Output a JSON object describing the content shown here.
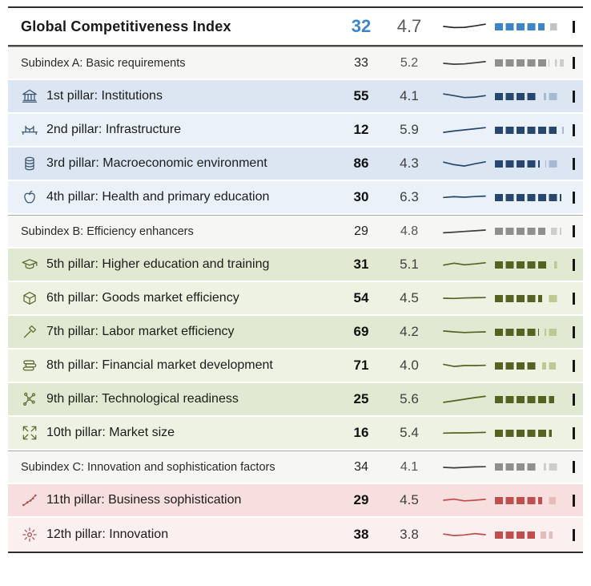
{
  "header": {
    "title": "Global Competitiveness Index",
    "rank": "32",
    "score": "4.7",
    "rank_color": "#3d85c6",
    "spark_color": "#2b2b2b",
    "spark": [
      0.5,
      0.6,
      0.58,
      0.45,
      0.3
    ],
    "bar": {
      "score_pct": 67,
      "ref_pct": 88,
      "color": "#3d85c6",
      "ref_color": "#c2c2c2"
    }
  },
  "palette": {
    "gray": {
      "bg_a": "#f6f6f5",
      "bg_b": "#f6f6f5",
      "bar": "#8f8f8f",
      "ref": "#cdcdcd",
      "spark": "#3d3d3d",
      "icon": "#4a4a4a"
    },
    "blue": {
      "bg_a": "#dbe6f2",
      "bg_b": "#eaf1f8",
      "bar": "#27476e",
      "ref": "#a6bad2",
      "spark": "#27476e",
      "icon": "#3d5673"
    },
    "green": {
      "bg_a": "#e1e9d2",
      "bg_b": "#edf2e2",
      "bar": "#556322",
      "ref": "#bcc993",
      "spark": "#556322",
      "icon": "#5c6b31"
    },
    "red": {
      "bg_a": "#f7dfdf",
      "bg_b": "#fcefef",
      "bar": "#bf4f4f",
      "ref": "#e5bcbc",
      "spark": "#bf4f4f",
      "icon": "#a8504f"
    }
  },
  "rows": [
    {
      "type": "subindex",
      "group": "gray",
      "shade": "a",
      "label": "Subindex A: Basic requirements",
      "rank": "33",
      "score": "5.2",
      "spark": [
        0.5,
        0.58,
        0.55,
        0.45,
        0.35
      ],
      "bar": {
        "score_pct": 74,
        "ref_pct": 93
      }
    },
    {
      "type": "pillar",
      "group": "blue",
      "shade": "a",
      "icon": "bank-icon",
      "label": "1st pillar: Institutions",
      "rank": "55",
      "score": "4.1",
      "spark": [
        0.3,
        0.45,
        0.62,
        0.58,
        0.45
      ],
      "bar": {
        "score_pct": 59,
        "ref_pct": 86
      }
    },
    {
      "type": "pillar",
      "group": "blue",
      "shade": "b",
      "icon": "bridge-icon",
      "label": "2nd pillar: Infrastructure",
      "rank": "12",
      "score": "5.9",
      "spark": [
        0.72,
        0.6,
        0.5,
        0.4,
        0.3
      ],
      "bar": {
        "score_pct": 84,
        "ref_pct": 93
      }
    },
    {
      "type": "pillar",
      "group": "blue",
      "shade": "a",
      "icon": "coins-icon",
      "label": "3rd pillar: Macroeconomic environment",
      "rank": "86",
      "score": "4.3",
      "spark": [
        0.38,
        0.6,
        0.72,
        0.52,
        0.35
      ],
      "bar": {
        "score_pct": 61,
        "ref_pct": 86
      }
    },
    {
      "type": "pillar",
      "group": "blue",
      "shade": "b",
      "icon": "apple-icon",
      "label": "4th pillar: Health and primary education",
      "rank": "30",
      "score": "6.3",
      "spark": [
        0.52,
        0.46,
        0.5,
        0.44,
        0.4
      ],
      "bar": {
        "score_pct": 90,
        "ref_pct": 78
      }
    },
    {
      "type": "subindex",
      "group": "gray",
      "shade": "a",
      "label": "Subindex B: Efficiency enhancers",
      "rank": "29",
      "score": "4.8",
      "spark": [
        0.6,
        0.54,
        0.48,
        0.42,
        0.36
      ],
      "bar": {
        "score_pct": 69,
        "ref_pct": 90
      }
    },
    {
      "type": "pillar",
      "group": "green",
      "shade": "a",
      "icon": "graduation-cap-icon",
      "label": "5th pillar: Higher education and training",
      "rank": "31",
      "score": "5.1",
      "spark": [
        0.55,
        0.38,
        0.52,
        0.44,
        0.34
      ],
      "bar": {
        "score_pct": 73,
        "ref_pct": 88
      }
    },
    {
      "type": "pillar",
      "group": "green",
      "shade": "b",
      "icon": "box-icon",
      "label": "6th pillar: Goods market efficiency",
      "rank": "54",
      "score": "4.5",
      "spark": [
        0.5,
        0.52,
        0.48,
        0.46,
        0.44
      ],
      "bar": {
        "score_pct": 64,
        "ref_pct": 86
      }
    },
    {
      "type": "pillar",
      "group": "green",
      "shade": "a",
      "icon": "tools-icon",
      "label": "7th pillar: Labor market efficiency",
      "rank": "69",
      "score": "4.2",
      "spark": [
        0.42,
        0.5,
        0.56,
        0.52,
        0.5
      ],
      "bar": {
        "score_pct": 60,
        "ref_pct": 84
      }
    },
    {
      "type": "pillar",
      "group": "green",
      "shade": "b",
      "icon": "money-stack-icon",
      "label": "8th pillar: Financial market development",
      "rank": "71",
      "score": "4.0",
      "spark": [
        0.4,
        0.58,
        0.5,
        0.5,
        0.48
      ],
      "bar": {
        "score_pct": 57,
        "ref_pct": 83
      }
    },
    {
      "type": "pillar",
      "group": "green",
      "shade": "a",
      "icon": "network-icon",
      "label": "9th pillar: Technological readiness",
      "rank": "25",
      "score": "5.6",
      "spark": [
        0.78,
        0.64,
        0.5,
        0.36,
        0.24
      ],
      "bar": {
        "score_pct": 80,
        "ref_pct": 88
      }
    },
    {
      "type": "pillar",
      "group": "green",
      "shade": "b",
      "icon": "expand-arrows-icon",
      "label": "10th pillar: Market size",
      "rank": "16",
      "score": "5.4",
      "spark": [
        0.52,
        0.5,
        0.5,
        0.48,
        0.46
      ],
      "bar": {
        "score_pct": 77,
        "ref_pct": 60
      }
    },
    {
      "type": "subindex",
      "group": "gray",
      "shade": "a",
      "label": "Subindex C: Innovation and sophistication factors",
      "rank": "34",
      "score": "4.1",
      "spark": [
        0.5,
        0.54,
        0.5,
        0.46,
        0.44
      ],
      "bar": {
        "score_pct": 59,
        "ref_pct": 86
      }
    },
    {
      "type": "pillar",
      "group": "red",
      "shade": "a",
      "icon": "trend-dots-icon",
      "label": "11th pillar: Business sophistication",
      "rank": "29",
      "score": "4.5",
      "spark": [
        0.5,
        0.4,
        0.56,
        0.5,
        0.42
      ],
      "bar": {
        "score_pct": 64,
        "ref_pct": 83
      }
    },
    {
      "type": "pillar",
      "group": "red",
      "shade": "b",
      "icon": "sunburst-icon",
      "label": "12th pillar: Innovation",
      "rank": "38",
      "score": "3.8",
      "spark": [
        0.44,
        0.58,
        0.52,
        0.4,
        0.5
      ],
      "bar": {
        "score_pct": 54,
        "ref_pct": 78
      }
    }
  ],
  "chart_data": {
    "type": "table",
    "title": "Global Competitiveness Index",
    "columns": [
      "indicator",
      "rank",
      "score_1_7"
    ],
    "score_scale": [
      1,
      7
    ],
    "rows": [
      [
        "Global Competitiveness Index",
        32,
        4.7
      ],
      [
        "Subindex A: Basic requirements",
        33,
        5.2
      ],
      [
        "1st pillar: Institutions",
        55,
        4.1
      ],
      [
        "2nd pillar: Infrastructure",
        12,
        5.9
      ],
      [
        "3rd pillar: Macroeconomic environment",
        86,
        4.3
      ],
      [
        "4th pillar: Health and primary education",
        30,
        6.3
      ],
      [
        "Subindex B: Efficiency enhancers",
        29,
        4.8
      ],
      [
        "5th pillar: Higher education and training",
        31,
        5.1
      ],
      [
        "6th pillar: Goods market efficiency",
        54,
        4.5
      ],
      [
        "7th pillar: Labor market efficiency",
        69,
        4.2
      ],
      [
        "8th pillar: Financial market development",
        71,
        4.0
      ],
      [
        "9th pillar: Technological readiness",
        25,
        5.6
      ],
      [
        "10th pillar: Market size",
        16,
        5.4
      ],
      [
        "Subindex C: Innovation and sophistication factors",
        34,
        4.1
      ],
      [
        "11th pillar: Business sophistication",
        29,
        4.5
      ],
      [
        "12th pillar: Innovation",
        38,
        3.8
      ]
    ]
  }
}
